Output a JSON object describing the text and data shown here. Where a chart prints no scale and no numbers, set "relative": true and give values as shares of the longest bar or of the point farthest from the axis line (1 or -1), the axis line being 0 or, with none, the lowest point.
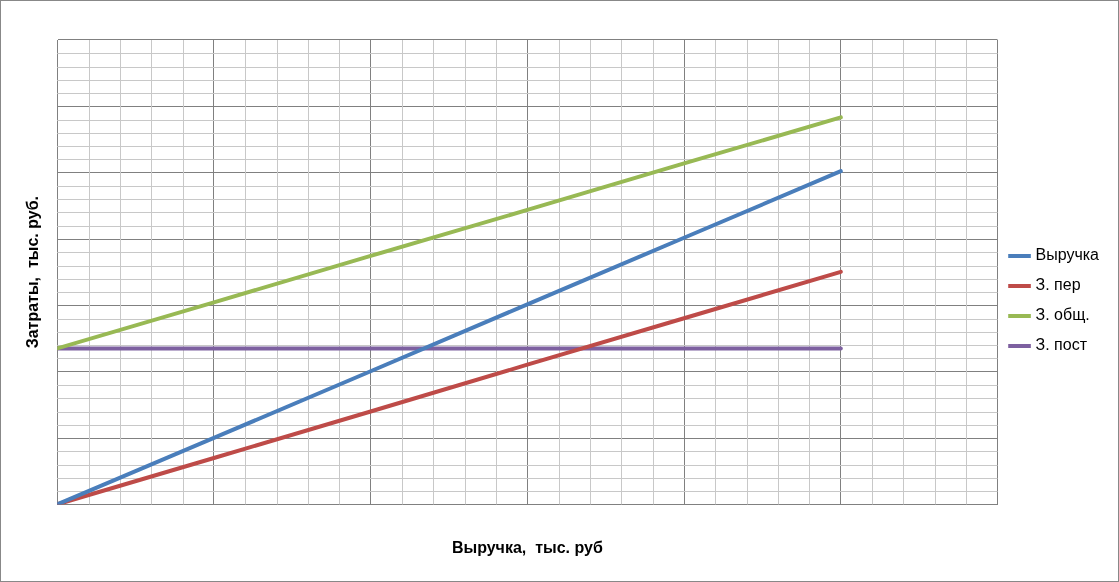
{
  "chart_data": {
    "type": "line",
    "relative": true,
    "xlabel": "Выручка,  тыс. руб",
    "ylabel": "Затраты,  тыс. руб.",
    "categories": [
      null,
      null,
      null,
      null,
      null,
      null
    ],
    "series": [
      {
        "name": "Выручка",
        "color": "#4a7ebb",
        "values": [
          0,
          0.172,
          0.344,
          0.517,
          0.689,
          0.861
        ]
      },
      {
        "name": "З. пер",
        "color": "#be4b48",
        "values": [
          0,
          0.12,
          0.24,
          0.361,
          0.481,
          0.601
        ]
      },
      {
        "name": "З. общ.",
        "color": "#98b954",
        "values": [
          0.403,
          0.522,
          0.642,
          0.761,
          0.881,
          1
        ]
      },
      {
        "name": "З. пост",
        "color": "#7d60a0",
        "values": [
          0.403,
          0.403,
          0.403,
          0.403,
          0.403,
          0.403
        ]
      }
    ],
    "grid": true,
    "legend": "right",
    "marker": "none",
    "line_style": "solid"
  }
}
